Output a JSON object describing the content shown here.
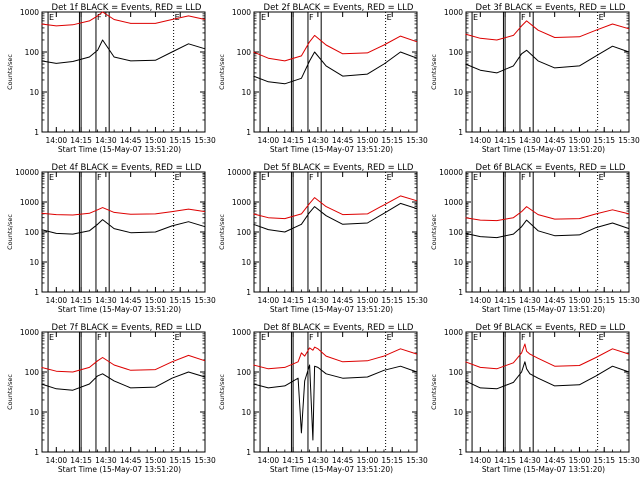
{
  "figure": {
    "ylabel": "Counts/sec",
    "xlabel": "Start Time (15-May-07 13:51:20)",
    "colors": {
      "events": "#000000",
      "lld": "#dd0000",
      "frame": "#000000",
      "background": "#ffffff"
    }
  },
  "chart_data": [
    {
      "type": "line",
      "title": "Det 1f BLACK = Events, RED = LLD",
      "ylabel": "Counts/sec",
      "xlabel": "Start Time (15-May-07 13:51:20)",
      "xlim": [
        "13:51:20",
        "15:30"
      ],
      "x_ticks": [
        "14:00",
        "14:15",
        "14:30",
        "14:45",
        "15:00",
        "15:15",
        "15:30"
      ],
      "y_scale": "log",
      "ylim": [
        1,
        1000
      ],
      "y_ticks": [
        "1",
        "10",
        "100",
        "1000"
      ],
      "markers": [
        {
          "time": "13:55",
          "label": "E",
          "style": "solid"
        },
        {
          "time": "14:14",
          "label": "",
          "style": "solid"
        },
        {
          "time": "14:15",
          "label": "",
          "style": "solid"
        },
        {
          "time": "14:24",
          "label": "F",
          "style": "solid"
        },
        {
          "time": "14:32",
          "label": "",
          "style": "solid"
        },
        {
          "time": "15:11",
          "label": "E",
          "style": "dotted"
        }
      ],
      "x": [
        "13:51",
        "14:00",
        "14:10",
        "14:20",
        "14:25",
        "14:28",
        "14:35",
        "14:45",
        "15:00",
        "15:10",
        "15:20",
        "15:30"
      ],
      "series": [
        {
          "name": "Events",
          "values": [
            60,
            52,
            58,
            75,
            110,
            200,
            75,
            60,
            62,
            100,
            160,
            120
          ]
        },
        {
          "name": "LLD",
          "values": [
            500,
            450,
            480,
            600,
            800,
            1000,
            650,
            520,
            520,
            650,
            800,
            650
          ]
        }
      ]
    },
    {
      "type": "line",
      "title": "Det 2f BLACK = Events, RED = LLD",
      "ylabel": "Counts/sec",
      "xlabel": "Start Time (15-May-07 13:51:20)",
      "xlim": [
        "13:51:20",
        "15:30"
      ],
      "x_ticks": [
        "14:00",
        "14:15",
        "14:30",
        "14:45",
        "15:00",
        "15:15",
        "15:30"
      ],
      "y_scale": "log",
      "ylim": [
        1,
        1000
      ],
      "y_ticks": [
        "1",
        "10",
        "100",
        "1000"
      ],
      "markers": [
        {
          "time": "13:55",
          "label": "E",
          "style": "solid"
        },
        {
          "time": "14:14",
          "label": "",
          "style": "solid"
        },
        {
          "time": "14:15",
          "label": "",
          "style": "solid"
        },
        {
          "time": "14:24",
          "label": "F",
          "style": "solid"
        },
        {
          "time": "14:32",
          "label": "",
          "style": "solid"
        },
        {
          "time": "15:11",
          "label": "E",
          "style": "dotted"
        }
      ],
      "x": [
        "13:51",
        "14:00",
        "14:10",
        "14:20",
        "14:25",
        "14:28",
        "14:35",
        "14:45",
        "15:00",
        "15:10",
        "15:20",
        "15:30"
      ],
      "series": [
        {
          "name": "Events",
          "values": [
            25,
            18,
            16,
            22,
            60,
            100,
            45,
            25,
            28,
            50,
            100,
            70
          ]
        },
        {
          "name": "LLD",
          "values": [
            100,
            70,
            60,
            80,
            180,
            260,
            150,
            90,
            95,
            150,
            250,
            180
          ]
        }
      ]
    },
    {
      "type": "line",
      "title": "Det 3f BLACK = Events, RED = LLD",
      "ylabel": "Counts/sec",
      "xlabel": "Start Time (15-May-07 13:51:20)",
      "xlim": [
        "13:51:20",
        "15:30"
      ],
      "x_ticks": [
        "14:00",
        "14:15",
        "14:30",
        "14:45",
        "15:00",
        "15:15",
        "15:30"
      ],
      "y_scale": "log",
      "ylim": [
        1,
        1000
      ],
      "y_ticks": [
        "1",
        "10",
        "100",
        "1000"
      ],
      "markers": [
        {
          "time": "13:55",
          "label": "E",
          "style": "solid"
        },
        {
          "time": "14:14",
          "label": "",
          "style": "solid"
        },
        {
          "time": "14:15",
          "label": "",
          "style": "solid"
        },
        {
          "time": "14:24",
          "label": "F",
          "style": "solid"
        },
        {
          "time": "14:32",
          "label": "",
          "style": "solid"
        },
        {
          "time": "15:11",
          "label": "E",
          "style": "dotted"
        }
      ],
      "x": [
        "13:51",
        "14:00",
        "14:10",
        "14:20",
        "14:25",
        "14:28",
        "14:35",
        "14:45",
        "15:00",
        "15:10",
        "15:20",
        "15:30"
      ],
      "series": [
        {
          "name": "Events",
          "values": [
            50,
            35,
            30,
            45,
            90,
            110,
            60,
            40,
            45,
            80,
            140,
            100
          ]
        },
        {
          "name": "LLD",
          "values": [
            280,
            220,
            200,
            260,
            450,
            600,
            350,
            230,
            240,
            350,
            500,
            380
          ]
        }
      ]
    },
    {
      "type": "line",
      "title": "Det 4f BLACK = Events, RED = LLD",
      "ylabel": "Counts/sec",
      "xlabel": "Start Time (15-May-07 13:51:20)",
      "xlim": [
        "13:51:20",
        "15:30"
      ],
      "x_ticks": [
        "14:00",
        "14:15",
        "14:30",
        "14:45",
        "15:00",
        "15:15",
        "15:30"
      ],
      "y_scale": "log",
      "ylim": [
        1,
        10000
      ],
      "y_ticks": [
        "1",
        "10",
        "100",
        "1000",
        "10000"
      ],
      "markers": [
        {
          "time": "13:55",
          "label": "E",
          "style": "solid"
        },
        {
          "time": "14:14",
          "label": "",
          "style": "solid"
        },
        {
          "time": "14:15",
          "label": "",
          "style": "solid"
        },
        {
          "time": "14:24",
          "label": "F",
          "style": "solid"
        },
        {
          "time": "14:32",
          "label": "",
          "style": "solid"
        },
        {
          "time": "15:11",
          "label": "E",
          "style": "dotted"
        }
      ],
      "x": [
        "13:51",
        "14:00",
        "14:10",
        "14:20",
        "14:25",
        "14:28",
        "14:35",
        "14:45",
        "15:00",
        "15:10",
        "15:20",
        "15:30"
      ],
      "series": [
        {
          "name": "Events",
          "values": [
            120,
            90,
            85,
            110,
            180,
            260,
            130,
            95,
            100,
            160,
            220,
            150
          ]
        },
        {
          "name": "LLD",
          "values": [
            420,
            380,
            370,
            420,
            550,
            650,
            450,
            390,
            400,
            480,
            580,
            480
          ]
        }
      ]
    },
    {
      "type": "line",
      "title": "Det 5f BLACK = Events, RED = LLD",
      "ylabel": "Counts/sec",
      "xlabel": "Start Time (15-May-07 13:51:20)",
      "xlim": [
        "13:51:20",
        "15:30"
      ],
      "x_ticks": [
        "14:00",
        "14:15",
        "14:30",
        "14:45",
        "15:00",
        "15:15",
        "15:30"
      ],
      "y_scale": "log",
      "ylim": [
        1,
        10000
      ],
      "y_ticks": [
        "1",
        "10",
        "100",
        "1000",
        "10000"
      ],
      "markers": [
        {
          "time": "13:55",
          "label": "E",
          "style": "solid"
        },
        {
          "time": "14:14",
          "label": "",
          "style": "solid"
        },
        {
          "time": "14:15",
          "label": "",
          "style": "solid"
        },
        {
          "time": "14:24",
          "label": "F",
          "style": "solid"
        },
        {
          "time": "14:32",
          "label": "",
          "style": "solid"
        },
        {
          "time": "15:11",
          "label": "E",
          "style": "dotted"
        }
      ],
      "x": [
        "13:51",
        "14:00",
        "14:10",
        "14:20",
        "14:25",
        "14:28",
        "14:35",
        "14:45",
        "15:00",
        "15:10",
        "15:20",
        "15:30"
      ],
      "series": [
        {
          "name": "Events",
          "values": [
            180,
            120,
            100,
            180,
            450,
            700,
            350,
            180,
            200,
            420,
            900,
            600
          ]
        },
        {
          "name": "LLD",
          "values": [
            400,
            300,
            280,
            400,
            900,
            1400,
            700,
            380,
            400,
            800,
            1600,
            1100
          ]
        }
      ]
    },
    {
      "type": "line",
      "title": "Det 6f BLACK = Events, RED = LLD",
      "ylabel": "Counts/sec",
      "xlabel": "Start Time (15-May-07 13:51:20)",
      "xlim": [
        "13:51:20",
        "15:30"
      ],
      "x_ticks": [
        "14:00",
        "14:15",
        "14:30",
        "14:45",
        "15:00",
        "15:15",
        "15:30"
      ],
      "y_scale": "log",
      "ylim": [
        1,
        10000
      ],
      "y_ticks": [
        "1",
        "10",
        "100",
        "1000",
        "10000"
      ],
      "markers": [
        {
          "time": "13:55",
          "label": "E",
          "style": "solid"
        },
        {
          "time": "14:14",
          "label": "",
          "style": "solid"
        },
        {
          "time": "14:15",
          "label": "",
          "style": "solid"
        },
        {
          "time": "14:24",
          "label": "F",
          "style": "solid"
        },
        {
          "time": "14:32",
          "label": "",
          "style": "solid"
        },
        {
          "time": "15:11",
          "label": "E",
          "style": "dotted"
        }
      ],
      "x": [
        "13:51",
        "14:00",
        "14:10",
        "14:20",
        "14:25",
        "14:28",
        "14:35",
        "14:45",
        "15:00",
        "15:10",
        "15:20",
        "15:30"
      ],
      "series": [
        {
          "name": "Events",
          "values": [
            90,
            70,
            65,
            85,
            150,
            250,
            110,
            75,
            80,
            140,
            200,
            130
          ]
        },
        {
          "name": "LLD",
          "values": [
            300,
            250,
            240,
            300,
            480,
            700,
            380,
            270,
            280,
            400,
            550,
            400
          ]
        }
      ]
    },
    {
      "type": "line",
      "title": "Det 7f BLACK = Events, RED = LLD",
      "ylabel": "Counts/sec",
      "xlabel": "Start Time (15-May-07 13:51:20)",
      "xlim": [
        "13:51:20",
        "15:30"
      ],
      "x_ticks": [
        "14:00",
        "14:15",
        "14:30",
        "14:45",
        "15:00",
        "15:15",
        "15:30"
      ],
      "y_scale": "log",
      "ylim": [
        1,
        1000
      ],
      "y_ticks": [
        "1",
        "10",
        "100",
        "1000"
      ],
      "markers": [
        {
          "time": "13:55",
          "label": "E",
          "style": "solid"
        },
        {
          "time": "14:14",
          "label": "",
          "style": "solid"
        },
        {
          "time": "14:15",
          "label": "",
          "style": "solid"
        },
        {
          "time": "14:24",
          "label": "F",
          "style": "solid"
        },
        {
          "time": "14:32",
          "label": "",
          "style": "solid"
        },
        {
          "time": "15:11",
          "label": "E",
          "style": "dotted"
        }
      ],
      "x": [
        "13:51",
        "14:00",
        "14:10",
        "14:20",
        "14:25",
        "14:28",
        "14:35",
        "14:45",
        "15:00",
        "15:10",
        "15:20",
        "15:30"
      ],
      "series": [
        {
          "name": "Events",
          "values": [
            50,
            38,
            35,
            50,
            80,
            90,
            60,
            40,
            42,
            70,
            100,
            75
          ]
        },
        {
          "name": "LLD",
          "values": [
            130,
            105,
            100,
            130,
            190,
            230,
            150,
            110,
            115,
            180,
            260,
            190
          ]
        }
      ]
    },
    {
      "type": "line",
      "title": "Det 8f BLACK = Events, RED = LLD",
      "ylabel": "Counts/sec",
      "xlabel": "Start Time (15-May-07 13:51:20)",
      "xlim": [
        "13:51:20",
        "15:30"
      ],
      "x_ticks": [
        "14:00",
        "14:15",
        "14:30",
        "14:45",
        "15:00",
        "15:15",
        "15:30"
      ],
      "y_scale": "log",
      "ylim": [
        1,
        1000
      ],
      "y_ticks": [
        "1",
        "10",
        "100",
        "1000"
      ],
      "markers": [
        {
          "time": "13:55",
          "label": "E",
          "style": "solid"
        },
        {
          "time": "14:14",
          "label": "",
          "style": "solid"
        },
        {
          "time": "14:15",
          "label": "",
          "style": "solid"
        },
        {
          "time": "14:24",
          "label": "F",
          "style": "solid"
        },
        {
          "time": "14:32",
          "label": "",
          "style": "solid"
        },
        {
          "time": "15:11",
          "label": "E",
          "style": "dotted"
        }
      ],
      "x": [
        "13:51",
        "14:00",
        "14:10",
        "14:18",
        "14:20",
        "14:22",
        "14:25",
        "14:27",
        "14:28",
        "14:30",
        "14:35",
        "14:45",
        "15:00",
        "15:10",
        "15:20",
        "15:30"
      ],
      "series": [
        {
          "name": "Events",
          "values": [
            50,
            40,
            45,
            70,
            3,
            60,
            150,
            2,
            140,
            130,
            90,
            70,
            75,
            110,
            140,
            100
          ]
        },
        {
          "name": "LLD",
          "values": [
            150,
            120,
            130,
            180,
            300,
            250,
            400,
            350,
            420,
            380,
            250,
            180,
            190,
            250,
            380,
            280
          ]
        }
      ]
    },
    {
      "type": "line",
      "title": "Det 9f BLACK = Events, RED = LLD",
      "ylabel": "Counts/sec",
      "xlabel": "Start Time (15-May-07 13:51:20)",
      "xlim": [
        "13:51:20",
        "15:30"
      ],
      "x_ticks": [
        "14:00",
        "14:15",
        "14:30",
        "14:45",
        "15:00",
        "15:15",
        "15:30"
      ],
      "y_scale": "log",
      "ylim": [
        1,
        1000
      ],
      "y_ticks": [
        "1",
        "10",
        "100",
        "1000"
      ],
      "markers": [
        {
          "time": "13:55",
          "label": "E",
          "style": "solid"
        },
        {
          "time": "14:14",
          "label": "",
          "style": "solid"
        },
        {
          "time": "14:15",
          "label": "",
          "style": "solid"
        },
        {
          "time": "14:24",
          "label": "F",
          "style": "solid"
        },
        {
          "time": "14:32",
          "label": "",
          "style": "solid"
        },
        {
          "time": "15:11",
          "label": "E",
          "style": "dotted"
        }
      ],
      "x": [
        "13:51",
        "14:00",
        "14:10",
        "14:20",
        "14:25",
        "14:27",
        "14:28",
        "14:30",
        "14:35",
        "14:45",
        "15:00",
        "15:10",
        "15:20",
        "15:30"
      ],
      "series": [
        {
          "name": "Events",
          "values": [
            60,
            40,
            38,
            55,
            100,
            180,
            120,
            90,
            70,
            45,
            48,
            80,
            140,
            100
          ]
        },
        {
          "name": "LLD",
          "values": [
            180,
            130,
            120,
            170,
            300,
            500,
            330,
            280,
            220,
            140,
            145,
            230,
            380,
            280
          ]
        }
      ]
    }
  ]
}
